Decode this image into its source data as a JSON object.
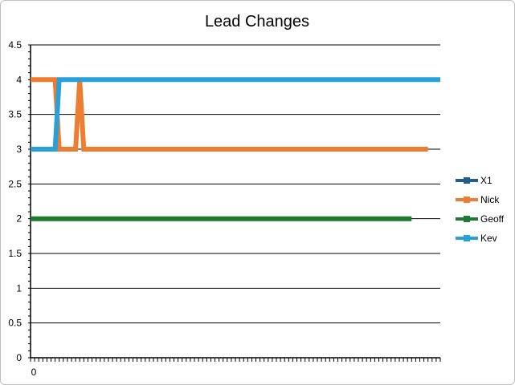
{
  "chart_data": {
    "type": "line",
    "title": "Lead Changes",
    "xlabel": "",
    "ylabel": "",
    "ylim": [
      0,
      4.5
    ],
    "yticks": [
      "0",
      "0.5",
      "1",
      "1.5",
      "2",
      "2.5",
      "3",
      "3.5",
      "4",
      "4.5"
    ],
    "xtick_label": "0",
    "x_count": 100,
    "grid": true,
    "legend_position": "right",
    "series": [
      {
        "name": "X1",
        "color": "#1f5f8b",
        "points": []
      },
      {
        "name": "Nick",
        "color": "#ed7d31",
        "points": [
          [
            0,
            4
          ],
          [
            6,
            4
          ],
          [
            7,
            3
          ],
          [
            11,
            3
          ],
          [
            12,
            4
          ],
          [
            13,
            3
          ],
          [
            97,
            3
          ]
        ]
      },
      {
        "name": "Geoff",
        "color": "#1e7a2e",
        "points": [
          [
            0,
            2
          ],
          [
            93,
            2
          ]
        ]
      },
      {
        "name": "Kev",
        "color": "#2aa0d8",
        "points": [
          [
            0,
            3
          ],
          [
            6,
            3
          ],
          [
            7,
            4
          ],
          [
            100,
            4
          ]
        ]
      }
    ]
  }
}
